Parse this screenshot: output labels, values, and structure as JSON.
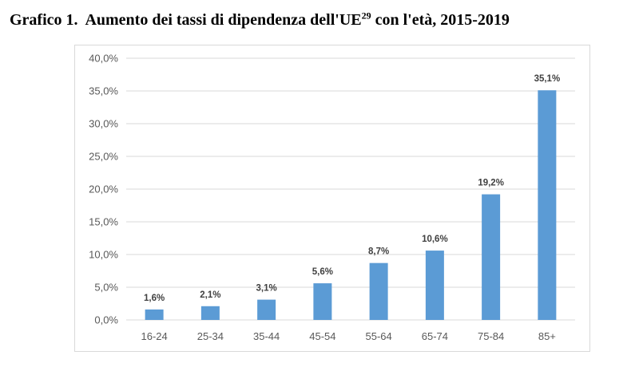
{
  "figure": {
    "label": "Grafico 1.",
    "title_text": "Aumento dei tassi di dipendenza dell'UE",
    "footnote_ref": "29",
    "title_suffix": " con l'età, 2015-2019"
  },
  "chart_data": {
    "type": "bar",
    "title": "Grafico 1.  Aumento dei tassi di dipendenza dell'UE29 con l'età, 2015-2019",
    "xlabel": "",
    "ylabel": "",
    "categories": [
      "16-24",
      "25-34",
      "35-44",
      "45-54",
      "55-64",
      "65-74",
      "75-84",
      "85+"
    ],
    "values": [
      1.6,
      2.1,
      3.1,
      5.6,
      8.7,
      10.6,
      19.2,
      35.1
    ],
    "data_labels": [
      "1,6%",
      "2,1%",
      "3,1%",
      "5,6%",
      "8,7%",
      "10,6%",
      "19,2%",
      "35,1%"
    ],
    "ylim": [
      0,
      40
    ],
    "yticks": [
      0,
      5,
      10,
      15,
      20,
      25,
      30,
      35,
      40
    ],
    "ytick_labels": [
      "0,0%",
      "5,0%",
      "10,0%",
      "15,0%",
      "20,0%",
      "25,0%",
      "30,0%",
      "35,0%",
      "40,0%"
    ],
    "grid": true,
    "legend": "none",
    "bar_color": "#5b9bd5",
    "grid_color": "#d9d9d9"
  }
}
